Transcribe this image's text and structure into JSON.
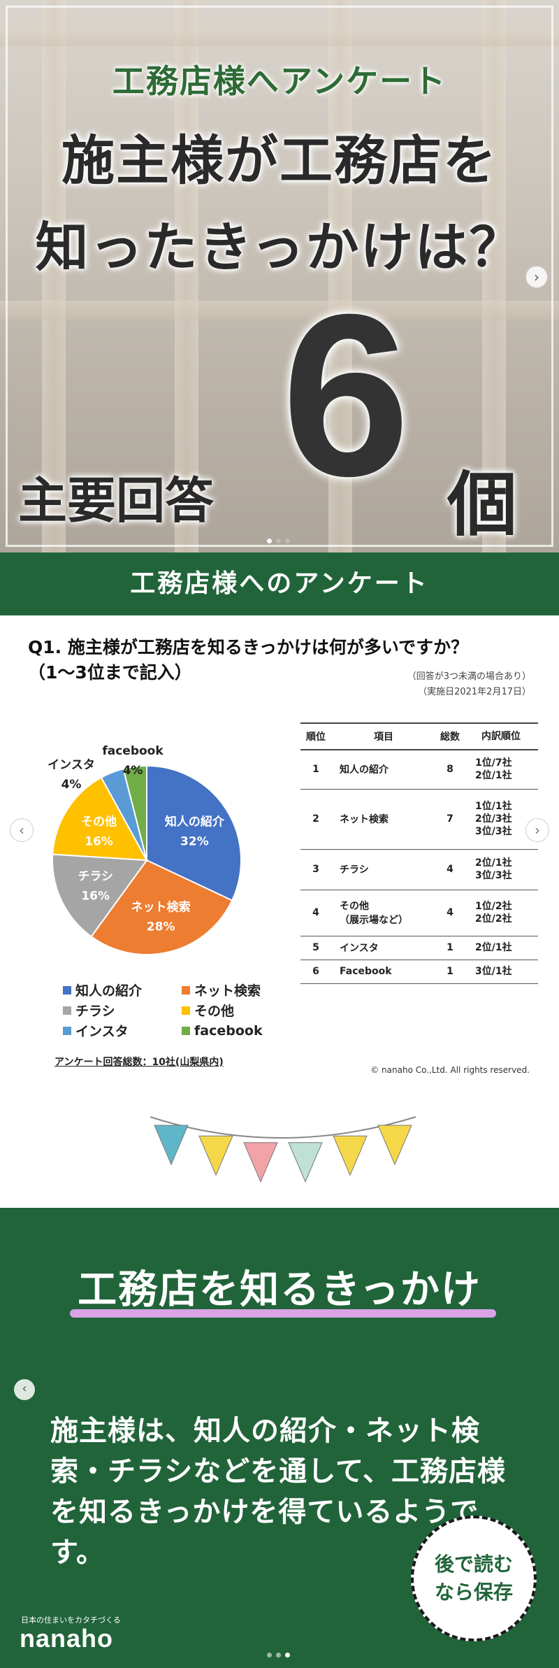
{
  "slide1": {
    "subtitle": "工務店様へアンケート",
    "title_line1": "施主様が工務店を",
    "title_line2": "知ったきっかけは？",
    "main_label": "主要回答",
    "big_number": "6",
    "unit": "個",
    "next_icon": "chevron-right-icon"
  },
  "slide2": {
    "banner": "工務店様へのアンケート",
    "question_line1": "Q1. 施主様が工務店を知るきっかけは何が多いですか？",
    "question_line2": "（1〜3位まで記入）",
    "note_line1": "（回答が3つ未満の場合あり）",
    "note_line2": "（実施日2021年2月17日）",
    "total": "アンケート回答総数：10社(山梨県内)",
    "copyright": "© nanaho Co.,Ltd. All rights reserved.",
    "table_headers": [
      "順位",
      "項目",
      "総数",
      "内訳順位"
    ],
    "table_rows": [
      {
        "rank": "1",
        "item": "知人の紹介",
        "total": "8",
        "detail": [
          "1位/7社",
          "2位/1社"
        ]
      },
      {
        "rank": "2",
        "item": "ネット検索",
        "total": "7",
        "detail": [
          "1位/1社",
          "2位/3社",
          "3位/3社"
        ]
      },
      {
        "rank": "3",
        "item": "チラシ",
        "total": "4",
        "detail": [
          "2位/1社",
          "3位/3社"
        ]
      },
      {
        "rank": "4",
        "item": "その他\n（展示場など）",
        "total": "4",
        "detail": [
          "1位/2社",
          "2位/2社"
        ]
      },
      {
        "rank": "5",
        "item": "インスタ",
        "total": "1",
        "detail": [
          "2位/1社"
        ]
      },
      {
        "rank": "6",
        "item": "Facebook",
        "total": "1",
        "detail": [
          "3位/1社"
        ]
      }
    ]
  },
  "chart_data": {
    "type": "pie",
    "title": "",
    "categories": [
      "知人の紹介",
      "ネット検索",
      "チラシ",
      "その他",
      "インスタ",
      "facebook"
    ],
    "values": [
      32,
      28,
      16,
      16,
      4,
      4
    ],
    "labels": [
      "32%",
      "28%",
      "16%",
      "16%",
      "4%",
      "4%"
    ],
    "colors": [
      "#4472c4",
      "#ed7d31",
      "#a5a5a5",
      "#ffc000",
      "#5b9bd5",
      "#70ad47"
    ],
    "legend": [
      "知人の紹介",
      "ネット検索",
      "チラシ",
      "その他",
      "インスタ",
      "facebook"
    ],
    "legend_position": "bottom"
  },
  "slide3": {
    "title": "工務店を知るきっかけ",
    "body": "施主様は、知人の紹介・ネット検索・チラシなどを通して、工務店様を知るきっかけを得ているようです。",
    "badge_line1": "後で読む",
    "badge_line2": "なら保存",
    "brand_tagline": "日本の住まいをカタチづくる",
    "brand": "nanaho",
    "bunting_colors": [
      "#5fb6c9",
      "#f5d84a",
      "#f2a3a8",
      "#bfe0d6",
      "#f5d84a",
      "#f5d84a"
    ]
  }
}
